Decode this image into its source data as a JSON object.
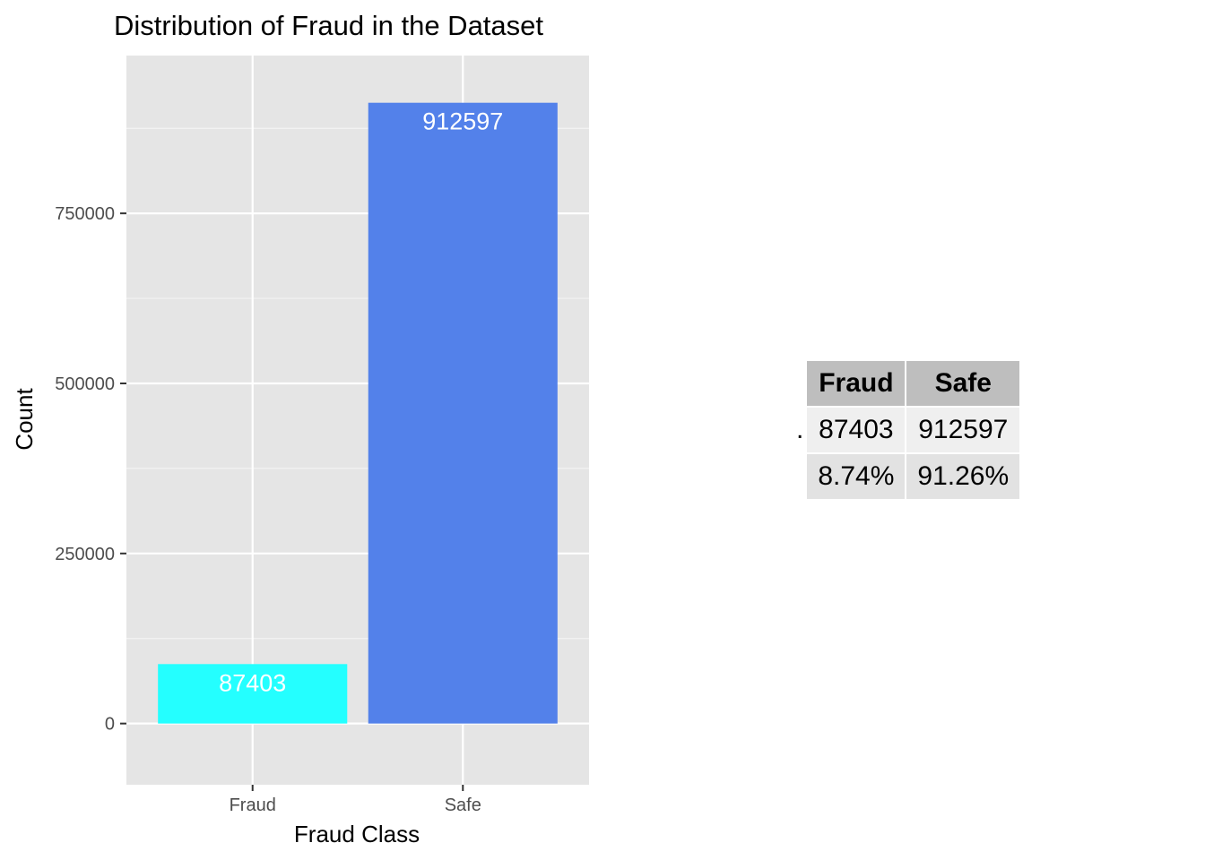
{
  "chart_data": {
    "type": "bar",
    "title": "Distribution of Fraud in the Dataset",
    "xlabel": "Fraud Class",
    "ylabel": "Count",
    "categories": [
      "Fraud",
      "Safe"
    ],
    "values": [
      87403,
      912597
    ],
    "data_labels": [
      "87403",
      "912597"
    ],
    "bar_colors": [
      "#24ffff",
      "#5381ea"
    ],
    "ylim": [
      -90000,
      982000
    ],
    "yticks": [
      0,
      250000,
      500000,
      750000
    ],
    "ytick_labels": [
      "0",
      "250000",
      "500000",
      "750000"
    ],
    "grid": true,
    "panel_color": "#e5e5e5"
  },
  "summary_table": {
    "headers": [
      "Fraud",
      "Safe"
    ],
    "rows": [
      {
        "name": ".",
        "cells": [
          "87403",
          "912597"
        ]
      },
      {
        "name": "",
        "cells": [
          "8.74%",
          "91.26%"
        ]
      }
    ]
  }
}
